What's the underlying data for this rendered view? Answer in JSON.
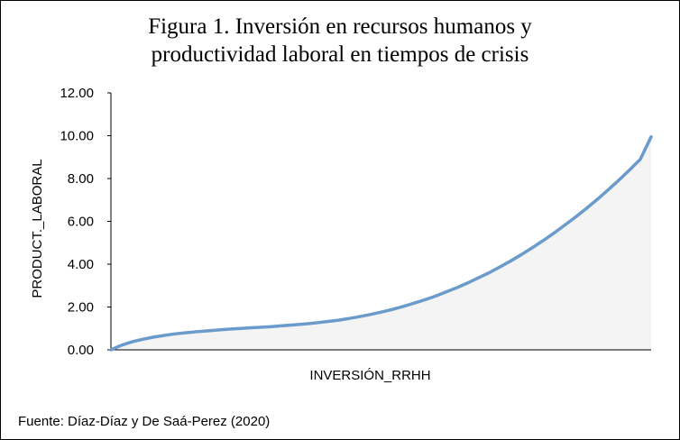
{
  "chart_data": {
    "type": "area",
    "title": [
      "Figura 1. Inversión en recursos humanos y",
      "productividad laboral en tiempos de crisis"
    ],
    "xlabel": "INVERSIÓN_RRHH",
    "ylabel": "PRODUCT._LABORAL",
    "yticks": [
      "0.00",
      "2.00",
      "4.00",
      "6.00",
      "8.00",
      "10.00",
      "12.00"
    ],
    "ylim": [
      0,
      12
    ],
    "xtick_labels": false,
    "grid": false,
    "legend": "none",
    "series": [
      {
        "x": [
          0,
          2,
          4,
          6,
          8,
          10,
          12,
          14,
          16,
          18,
          20,
          22,
          24,
          26,
          28,
          30,
          32,
          34,
          36,
          38,
          40,
          42,
          44,
          46,
          48,
          50,
          52,
          54,
          56,
          58,
          60,
          62,
          64,
          66,
          68,
          70,
          72,
          74,
          76,
          78,
          80,
          82,
          84,
          86,
          88,
          90,
          92,
          94,
          96,
          98,
          100
        ],
        "values": [
          0.0,
          0.22,
          0.38,
          0.5,
          0.6,
          0.68,
          0.75,
          0.8,
          0.85,
          0.89,
          0.93,
          0.97,
          1.0,
          1.03,
          1.06,
          1.09,
          1.13,
          1.17,
          1.21,
          1.26,
          1.32,
          1.38,
          1.46,
          1.55,
          1.65,
          1.76,
          1.88,
          2.02,
          2.17,
          2.33,
          2.5,
          2.7,
          2.9,
          3.12,
          3.36,
          3.6,
          3.87,
          4.15,
          4.45,
          4.77,
          5.1,
          5.45,
          5.82,
          6.2,
          6.6,
          7.02,
          7.46,
          7.92,
          8.4,
          8.9,
          9.95
        ],
        "color": "#6a9bcb"
      }
    ],
    "colors": {
      "line": "#6a9bcb",
      "fill_hatch": "#c8c8c8",
      "axis": "#000000"
    }
  },
  "source": "Fuente: Díaz-Díaz y De Saá-Perez (2020)"
}
